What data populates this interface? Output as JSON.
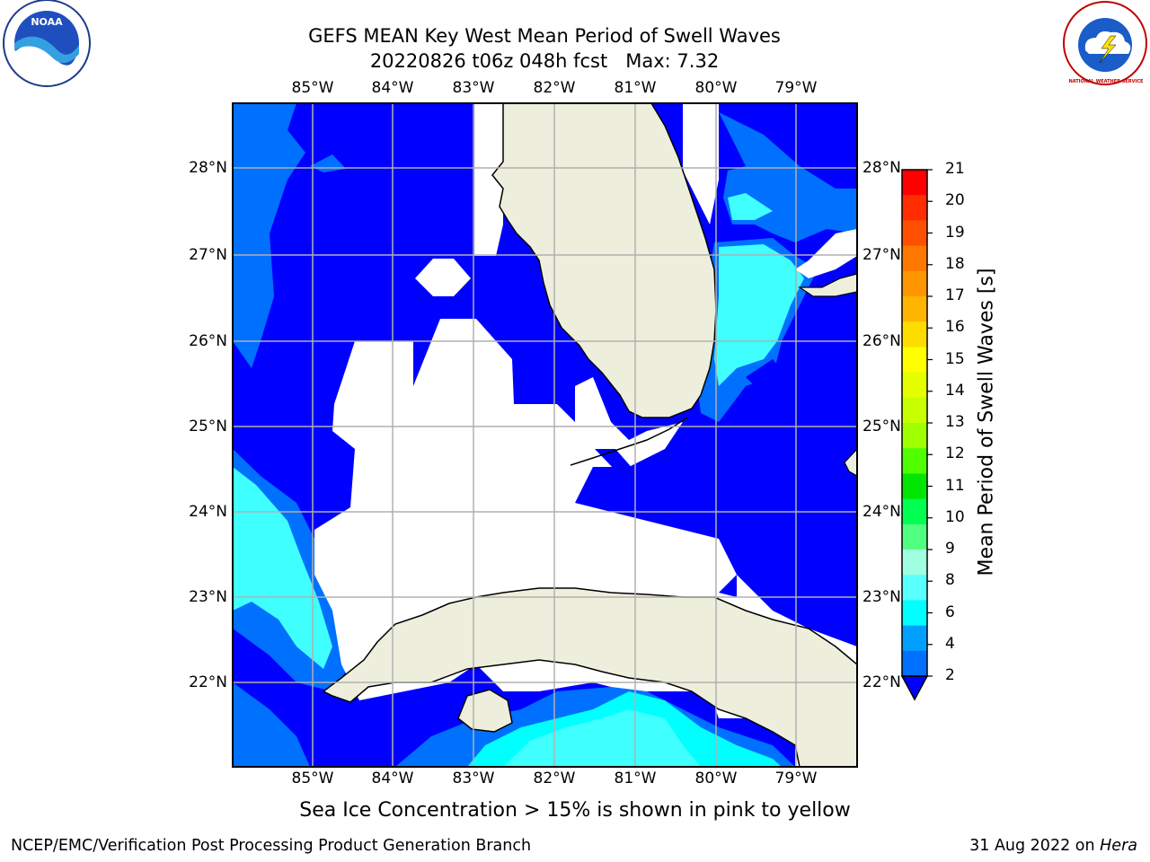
{
  "header": {
    "title": "GEFS MEAN Key West Mean Period of Swell Waves",
    "date_fcst": "20220826 t06z 048h fcst",
    "max_label": "Max: 7.32"
  },
  "map": {
    "lon_labels": [
      "85°W",
      "84°W",
      "83°W",
      "82°W",
      "81°W",
      "80°W",
      "79°W"
    ],
    "lat_labels": [
      "28°N",
      "27°N",
      "26°N",
      "25°N",
      "24°N",
      "23°N",
      "22°N"
    ],
    "colors": {
      "land": "#eeeedd",
      "deep_blue": "#0000ff",
      "mid_blue": "#0070ff",
      "cyan": "#00ffff",
      "light_cyan": "#40ffff",
      "no_data": "#ffffff",
      "grid": "#b0b0b0"
    }
  },
  "colorbar": {
    "label": "Mean Period of Swell Waves [s]",
    "ticks": [
      "21",
      "20",
      "19",
      "18",
      "17",
      "16",
      "15",
      "14",
      "13",
      "12",
      "11",
      "10",
      "9",
      "8",
      "6",
      "4",
      "2"
    ],
    "colors": [
      "#ff0000",
      "#ff2d00",
      "#ff5000",
      "#ff7800",
      "#ff9600",
      "#ffb400",
      "#ffdc00",
      "#ffff00",
      "#e6ff00",
      "#c8ff00",
      "#a0ff00",
      "#50ff00",
      "#00e600",
      "#00ff50",
      "#50ff80",
      "#a0ffe0",
      "#5affff",
      "#00ffff",
      "#00a0ff",
      "#0070ff"
    ]
  },
  "note": "Sea Ice Concentration > 15% is shown in pink to yellow",
  "footer": {
    "left": "NCEP/EMC/Verification Post Processing Product Generation Branch",
    "date": "31 Aug 2022 on ",
    "host": "Hera"
  },
  "logos": {
    "noaa": "NOAA",
    "nws": "NATIONAL WEATHER SERVICE"
  }
}
